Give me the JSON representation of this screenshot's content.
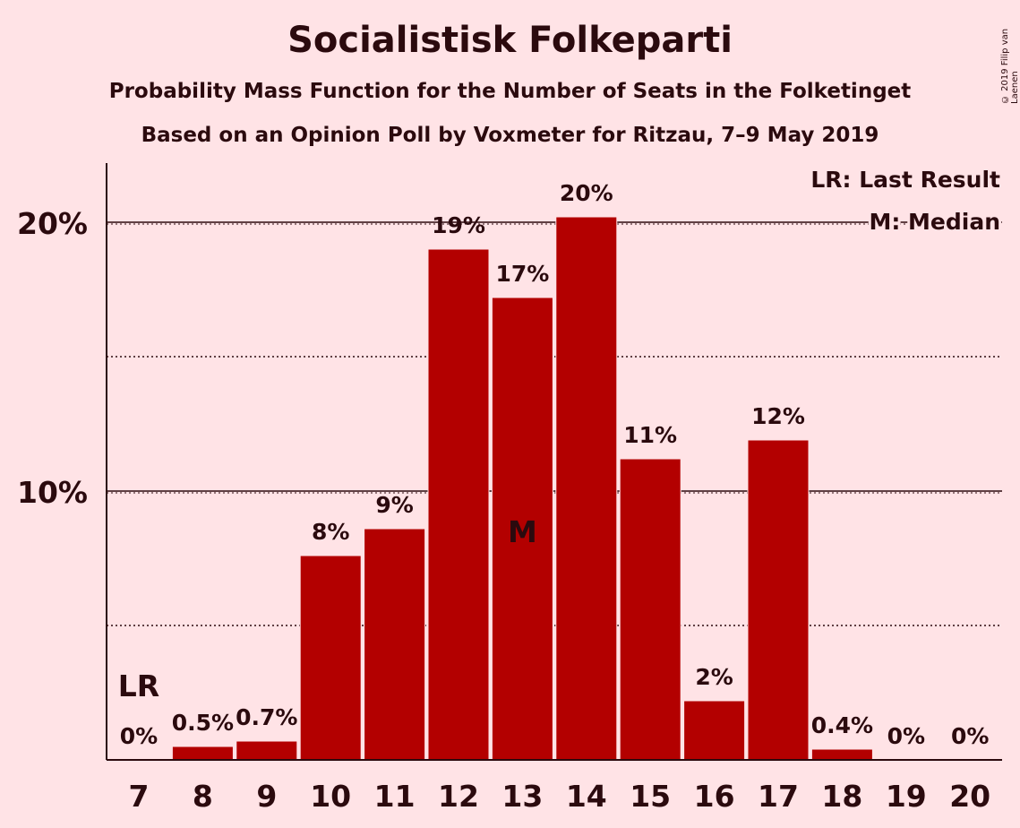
{
  "chart_data": {
    "type": "bar",
    "title": "Socialistisk Folkeparti",
    "subtitle": "Probability Mass Function for the Number of Seats in the Folketinget",
    "subtitle2": "Based on an Opinion Poll by Voxmeter for Ritzau, 7–9 May 2019",
    "copyright": "© 2019 Filip van Laenen",
    "categories": [
      "7",
      "8",
      "9",
      "10",
      "11",
      "12",
      "13",
      "14",
      "15",
      "16",
      "17",
      "18",
      "19",
      "20"
    ],
    "values": [
      0,
      0.5,
      0.7,
      7.6,
      8.6,
      19.0,
      17.2,
      20.2,
      11.2,
      2.2,
      11.9,
      0.4,
      0,
      0
    ],
    "data_labels": [
      "0%",
      "0.5%",
      "0.7%",
      "8%",
      "9%",
      "19%",
      "17%",
      "20%",
      "11%",
      "2%",
      "12%",
      "0.4%",
      "0%",
      "0%"
    ],
    "ylim": [
      0,
      22
    ],
    "yticks": [
      {
        "value": 10,
        "label": "10%"
      },
      {
        "value": 20,
        "label": "20%"
      }
    ],
    "minor_gridlines": [
      5,
      15
    ],
    "bar_color": "#b30000",
    "last_result": {
      "category": "7",
      "label": "LR"
    },
    "median": {
      "category": "13",
      "label": "M"
    },
    "legend": {
      "position": "top-right",
      "items": [
        "LR: Last Result",
        "M: Median"
      ]
    }
  }
}
